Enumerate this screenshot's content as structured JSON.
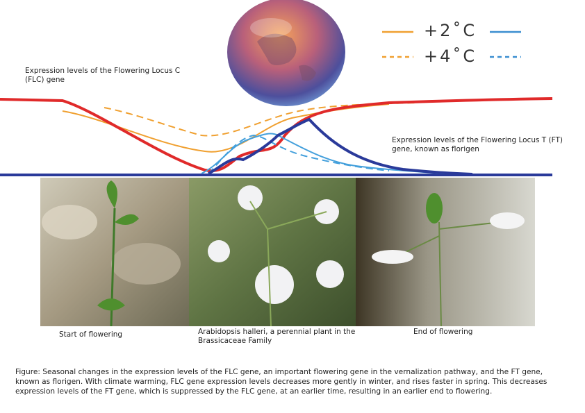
{
  "legend": {
    "items": [
      "+2˚C",
      "+4˚C"
    ]
  },
  "labels": {
    "flc": "Expression levels of the Flowering Locus C (FLC) gene",
    "ft": "Expression levels of the Flowering Locus T (FT) gene, known as florigen"
  },
  "photos": [
    "Start of flowering",
    "Arabidopsis halleri, a perennial plant in the Brassicaceae Family",
    "End of flowering"
  ],
  "caption": "Figure: Seasonal changes in the expression levels of the FLC gene, an important flowering gene in the vernalization pathway, and the FT gene, known as florigen. With climate warming, FLC gene expression levels decreases more gently in winter, and rises faster in spring. This decreases expression levels of the FT gene, which is suppressed by the FLC gene, at an earlier time, resulting in an earlier end to flowering."
}
